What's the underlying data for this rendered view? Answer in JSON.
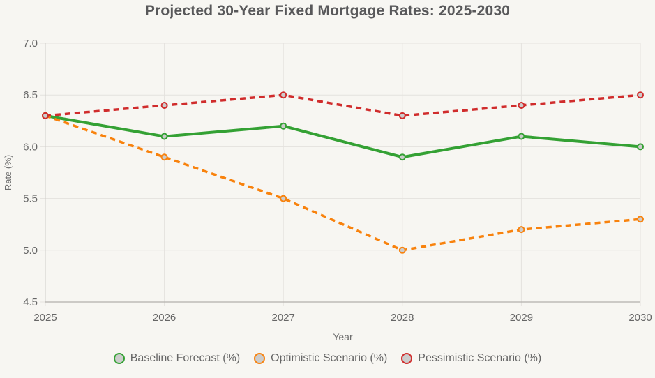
{
  "title": "Projected 30-Year Fixed Mortgage Rates: 2025-2030",
  "chart_data": {
    "type": "line",
    "x": [
      2025,
      2026,
      2027,
      2028,
      2029,
      2030
    ],
    "series": [
      {
        "name": "Baseline Forecast (%)",
        "values": [
          6.3,
          6.1,
          6.2,
          5.9,
          6.1,
          6.0
        ],
        "color": "#34a134",
        "style": "solid"
      },
      {
        "name": "Optimistic Scenario (%)",
        "values": [
          6.3,
          5.9,
          5.5,
          5.0,
          5.2,
          5.3
        ],
        "color": "#f8820d",
        "style": "dashed"
      },
      {
        "name": "Pessimistic Scenario (%)",
        "values": [
          6.3,
          6.4,
          6.5,
          6.3,
          6.4,
          6.5
        ],
        "color": "#d02c2c",
        "style": "dashed"
      }
    ],
    "xlabel": "Year",
    "ylabel": "Rate (%)",
    "ylim": [
      4.5,
      7.0
    ],
    "yticks": [
      4.5,
      5.0,
      5.5,
      6.0,
      6.5,
      7.0
    ],
    "grid": true,
    "legend_position": "bottom",
    "marker_fill": "#cccccc"
  },
  "colors": {
    "background": "#f7f6f2",
    "grid": "#e4e2de",
    "axis_line_left": "#cfcdc9",
    "axis_line_bottom": "#b3b1ad",
    "tick_text": "#666666",
    "axis_title_text": "#6e6e6e",
    "title_text": "#58585a"
  }
}
